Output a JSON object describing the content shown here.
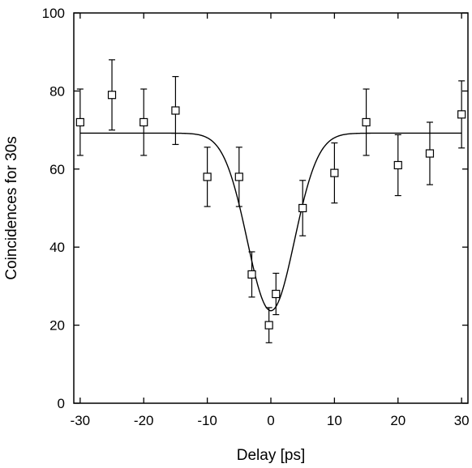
{
  "chart_data": {
    "type": "scatter",
    "xlabel": "Delay [ps]",
    "ylabel": "Coincidences for 30s",
    "xlim": [
      -31,
      31
    ],
    "ylim": [
      0,
      100
    ],
    "x_ticks": [
      -30,
      -20,
      -10,
      0,
      10,
      20,
      30
    ],
    "y_ticks": [
      0,
      20,
      40,
      60,
      80,
      100
    ],
    "grid": false,
    "series": [
      {
        "marker": "open-square",
        "points": [
          {
            "x": -30,
            "y": 72,
            "err": 8.5
          },
          {
            "x": -25,
            "y": 79,
            "err": 9
          },
          {
            "x": -20,
            "y": 72,
            "err": 8.5
          },
          {
            "x": -15,
            "y": 75,
            "err": 8.7
          },
          {
            "x": -10,
            "y": 58,
            "err": 7.6
          },
          {
            "x": -5,
            "y": 58,
            "err": 7.6
          },
          {
            "x": -3,
            "y": 33,
            "err": 5.8
          },
          {
            "x": -0.3,
            "y": 20,
            "err": 4.5
          },
          {
            "x": 0.8,
            "y": 28,
            "err": 5.3
          },
          {
            "x": 5,
            "y": 50,
            "err": 7.1
          },
          {
            "x": 10,
            "y": 59,
            "err": 7.7
          },
          {
            "x": 15,
            "y": 72,
            "err": 8.5
          },
          {
            "x": 20,
            "y": 61,
            "err": 7.8
          },
          {
            "x": 25,
            "y": 64,
            "err": 8
          },
          {
            "x": 30,
            "y": 74,
            "err": 8.6
          }
        ]
      }
    ],
    "fit_curve": {
      "type": "gaussian-dip",
      "baseline": 69.2,
      "depth": 45.5,
      "center": 0,
      "sigma": 3.7,
      "x_range": [
        -30,
        30
      ]
    }
  }
}
